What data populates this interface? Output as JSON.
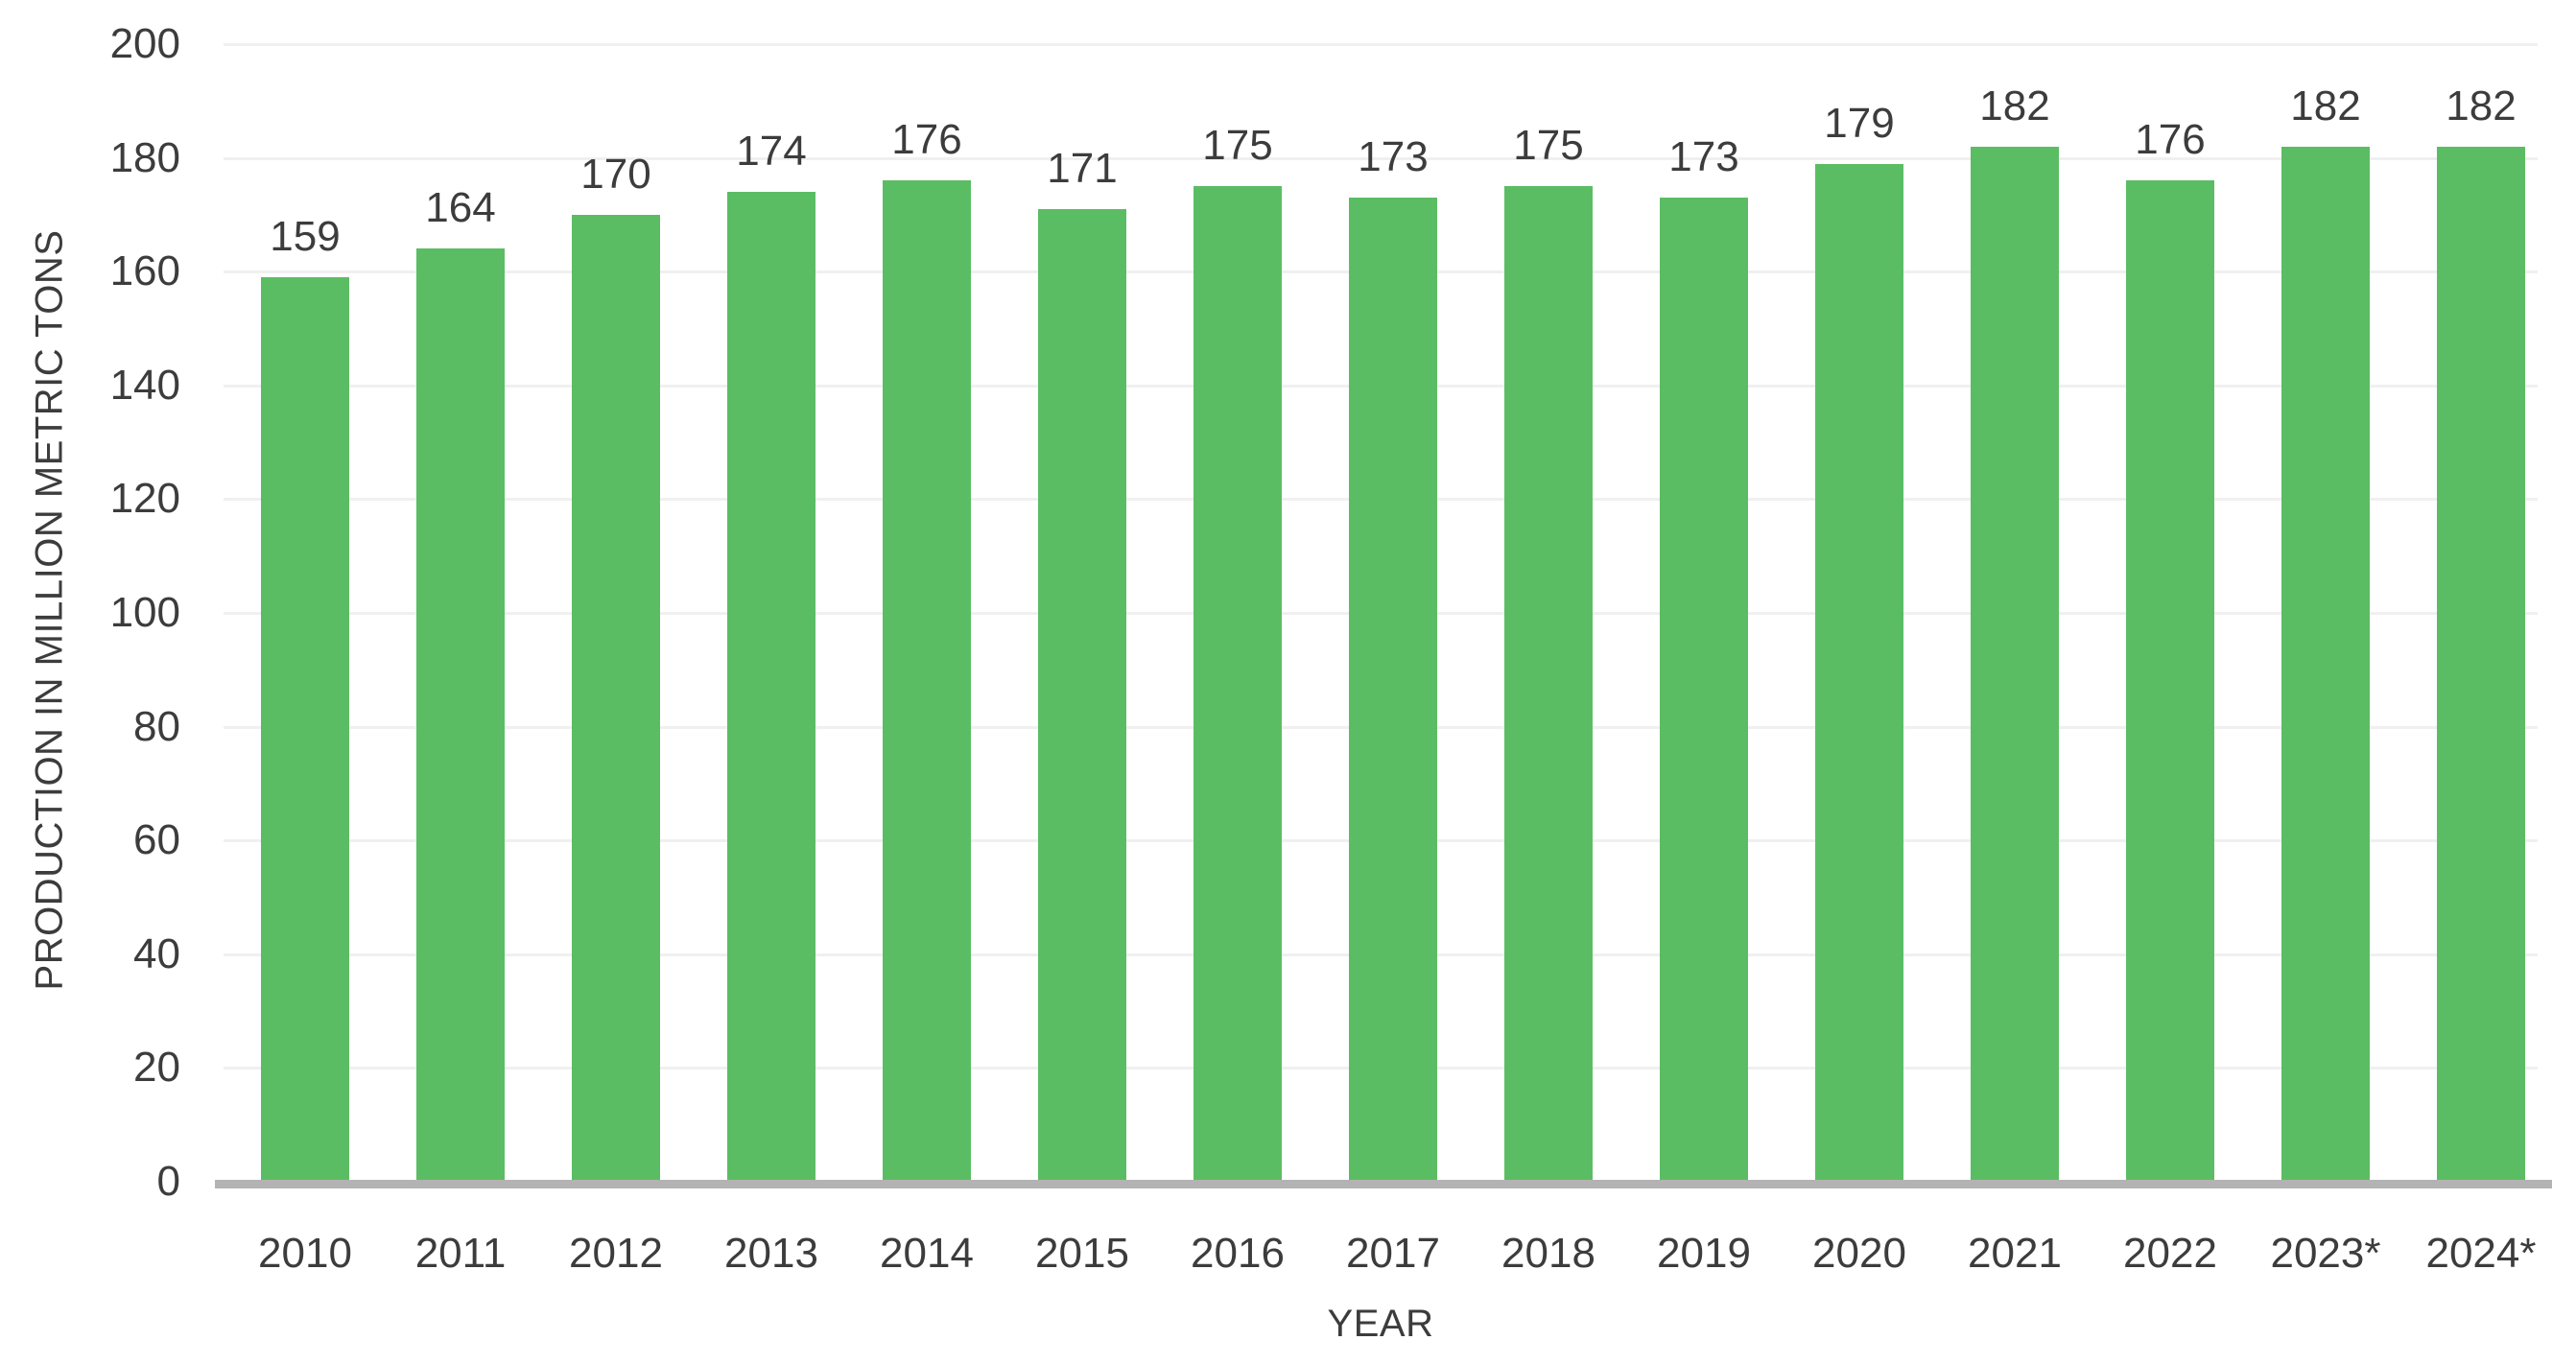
{
  "chart_data": {
    "type": "bar",
    "title": "",
    "xlabel": "YEAR",
    "ylabel": "PRODUCTION IN MILLION METRIC TONS",
    "categories": [
      "2010",
      "2011",
      "2012",
      "2013",
      "2014",
      "2015",
      "2016",
      "2017",
      "2018",
      "2019",
      "2020",
      "2021",
      "2022",
      "2023*",
      "2024*"
    ],
    "values": [
      159,
      164,
      170,
      174,
      176,
      171,
      175,
      173,
      175,
      173,
      179,
      182,
      176,
      182,
      182
    ],
    "ylim": [
      0,
      200
    ],
    "yticks": [
      0,
      20,
      40,
      60,
      80,
      100,
      120,
      140,
      160,
      180,
      200
    ],
    "grid": "horizontal",
    "legend": "none",
    "data_labels": "above-bars",
    "colors": {
      "bar": "#5BBD63",
      "grid": "#F0F0F0",
      "axis_line": "#B3B3B3",
      "text": "#3C3C3C"
    }
  }
}
